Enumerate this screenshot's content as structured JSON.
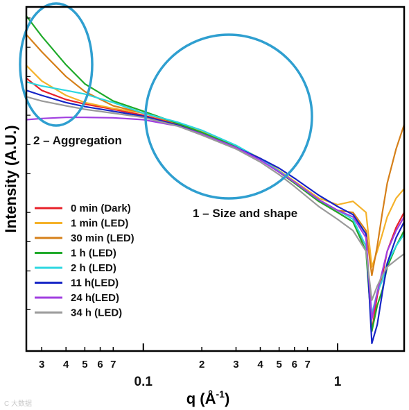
{
  "chart_data": {
    "type": "line",
    "xlabel": "q (Å",
    "xlabel_sup": "-1",
    "xlabel_close": ")",
    "ylabel": "Intensity (A.U.)",
    "x_scale": "log",
    "y_scale": "log",
    "xlim": [
      0.025,
      2.2
    ],
    "y_ticks_labeled": false,
    "x_major_ticks": [
      {
        "value": 0.1,
        "label": "0.1"
      },
      {
        "value": 1,
        "label": "1"
      }
    ],
    "x_minor_ticks": [
      {
        "value": 0.03,
        "label": "3"
      },
      {
        "value": 0.04,
        "label": "4"
      },
      {
        "value": 0.05,
        "label": "5"
      },
      {
        "value": 0.06,
        "label": "6"
      },
      {
        "value": 0.07,
        "label": "7"
      },
      {
        "value": 0.2,
        "label": "2"
      },
      {
        "value": 0.3,
        "label": "3"
      },
      {
        "value": 0.4,
        "label": "4"
      },
      {
        "value": 0.5,
        "label": "5"
      },
      {
        "value": 0.6,
        "label": "6"
      },
      {
        "value": 0.7,
        "label": "7"
      }
    ],
    "legend_position": "bottom-left",
    "grid": false,
    "series": [
      {
        "name": "0 min (Dark)",
        "color": "#e8212a",
        "x": [
          0.025,
          0.03,
          0.04,
          0.05,
          0.07,
          0.1,
          0.15,
          0.2,
          0.3,
          0.4,
          0.5,
          0.6,
          0.8,
          1.0,
          1.2,
          1.4,
          1.5,
          1.6,
          1.7,
          1.8,
          2.0,
          2.2
        ],
        "y": [
          0.48,
          0.36,
          0.29,
          0.26,
          0.23,
          0.2,
          0.16,
          0.13,
          0.095,
          0.07,
          0.052,
          0.04,
          0.026,
          0.02,
          0.016,
          0.009,
          0.0012,
          0.0028,
          0.0045,
          0.008,
          0.014,
          0.02
        ]
      },
      {
        "name": "1 min (LED)",
        "color": "#f5b22a",
        "x": [
          0.025,
          0.03,
          0.04,
          0.05,
          0.07,
          0.1,
          0.15,
          0.2,
          0.3,
          0.4,
          0.5,
          0.6,
          0.8,
          1.0,
          1.2,
          1.4,
          1.5,
          1.6,
          1.7,
          1.8,
          2.0,
          2.2
        ],
        "y": [
          0.65,
          0.45,
          0.32,
          0.27,
          0.235,
          0.21,
          0.165,
          0.135,
          0.097,
          0.072,
          0.054,
          0.042,
          0.028,
          0.024,
          0.026,
          0.02,
          0.0055,
          0.008,
          0.012,
          0.018,
          0.028,
          0.035
        ]
      },
      {
        "name": "30 min (LED)",
        "color": "#d6801a",
        "x": [
          0.025,
          0.03,
          0.04,
          0.05,
          0.07,
          0.1,
          0.15,
          0.2,
          0.3,
          0.4,
          0.5,
          0.6,
          0.8,
          1.0,
          1.2,
          1.4,
          1.5,
          1.6,
          1.7,
          1.8,
          2.0,
          2.2
        ],
        "y": [
          1.35,
          0.9,
          0.5,
          0.35,
          0.25,
          0.21,
          0.165,
          0.133,
          0.095,
          0.07,
          0.053,
          0.041,
          0.027,
          0.021,
          0.02,
          0.013,
          0.0045,
          0.009,
          0.02,
          0.04,
          0.09,
          0.16
        ]
      },
      {
        "name": "1 h (LED)",
        "color": "#1faa2a",
        "x": [
          0.025,
          0.03,
          0.04,
          0.05,
          0.07,
          0.1,
          0.15,
          0.2,
          0.3,
          0.4,
          0.5,
          0.6,
          0.8,
          1.0,
          1.2,
          1.4,
          1.5,
          1.6,
          1.7,
          1.8,
          2.0,
          2.2
        ],
        "y": [
          2.1,
          1.3,
          0.66,
          0.42,
          0.28,
          0.22,
          0.165,
          0.133,
          0.095,
          0.07,
          0.052,
          0.04,
          0.026,
          0.02,
          0.016,
          0.008,
          0.0012,
          0.0022,
          0.0032,
          0.0055,
          0.009,
          0.013
        ]
      },
      {
        "name": "2 h (LED)",
        "color": "#2cd7e0",
        "x": [
          0.025,
          0.03,
          0.04,
          0.05,
          0.07,
          0.1,
          0.15,
          0.2,
          0.3,
          0.4,
          0.5,
          0.6,
          0.8,
          1.0,
          1.2,
          1.4,
          1.5,
          1.6,
          1.7,
          1.8,
          2.0,
          2.2
        ],
        "y": [
          0.44,
          0.4,
          0.36,
          0.33,
          0.27,
          0.21,
          0.17,
          0.14,
          0.098,
          0.071,
          0.053,
          0.041,
          0.027,
          0.021,
          0.017,
          0.009,
          0.0018,
          0.003,
          0.004,
          0.006,
          0.009,
          0.012
        ]
      },
      {
        "name": "11 h(LED)",
        "color": "#1625c6",
        "x": [
          0.025,
          0.03,
          0.04,
          0.05,
          0.07,
          0.1,
          0.15,
          0.2,
          0.3,
          0.4,
          0.5,
          0.6,
          0.8,
          1.0,
          1.2,
          1.4,
          1.5,
          1.6,
          1.7,
          1.8,
          2.0,
          2.2
        ],
        "y": [
          0.36,
          0.32,
          0.27,
          0.245,
          0.22,
          0.195,
          0.158,
          0.128,
          0.093,
          0.072,
          0.057,
          0.045,
          0.03,
          0.023,
          0.019,
          0.012,
          0.0009,
          0.0014,
          0.003,
          0.006,
          0.011,
          0.016
        ]
      },
      {
        "name": "24 h(LED)",
        "color": "#a13fe0",
        "x": [
          0.025,
          0.03,
          0.04,
          0.05,
          0.07,
          0.1,
          0.15,
          0.2,
          0.3,
          0.4,
          0.5,
          0.6,
          0.8,
          1.0,
          1.2,
          1.4,
          1.5,
          1.6,
          1.7,
          1.8,
          2.0,
          2.2
        ],
        "y": [
          0.18,
          0.185,
          0.19,
          0.19,
          0.188,
          0.18,
          0.155,
          0.128,
          0.093,
          0.069,
          0.052,
          0.041,
          0.027,
          0.021,
          0.018,
          0.011,
          0.0016,
          0.003,
          0.005,
          0.008,
          0.013,
          0.018
        ]
      },
      {
        "name": "34 h (LED)",
        "color": "#9a9a9a",
        "x": [
          0.025,
          0.03,
          0.04,
          0.05,
          0.07,
          0.1,
          0.15,
          0.2,
          0.3,
          0.4,
          0.5,
          0.6,
          0.8,
          1.0,
          1.2,
          1.4,
          1.5,
          1.6,
          1.7,
          1.8,
          2.0,
          2.2
        ],
        "y": [
          0.31,
          0.28,
          0.25,
          0.23,
          0.21,
          0.19,
          0.155,
          0.125,
          0.09,
          0.066,
          0.049,
          0.037,
          0.023,
          0.017,
          0.013,
          0.008,
          0.0025,
          0.0035,
          0.0045,
          0.0055,
          0.0065,
          0.0075
        ]
      }
    ],
    "annotations": [
      {
        "text": "2 – Aggregation",
        "region": "low-q"
      },
      {
        "text": "1 – Size and shape",
        "region": "mid-q"
      }
    ],
    "highlight_color": "#2f9fd0"
  },
  "watermark": "C 大数据"
}
